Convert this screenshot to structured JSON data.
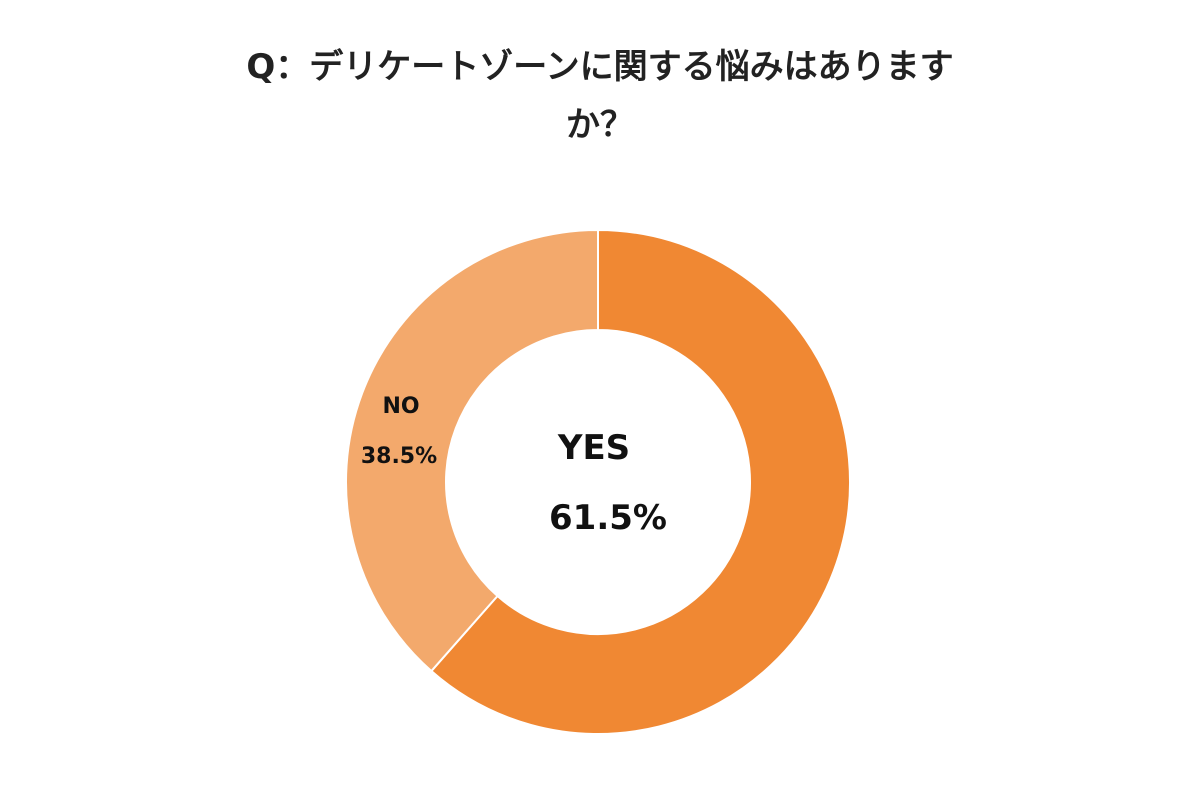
{
  "chart_data": {
    "type": "pie",
    "title_line1": "Q：デリケートゾーンに関する悩みはあります",
    "title_line2": "か？",
    "slices": [
      {
        "label": "YES",
        "value": 61.5,
        "value_label": "61.5%",
        "color": "#f08833"
      },
      {
        "label": "NO",
        "value": 38.5,
        "value_label": "38.5%",
        "color": "#f3a96c"
      }
    ],
    "donut": true,
    "legend": "none"
  }
}
